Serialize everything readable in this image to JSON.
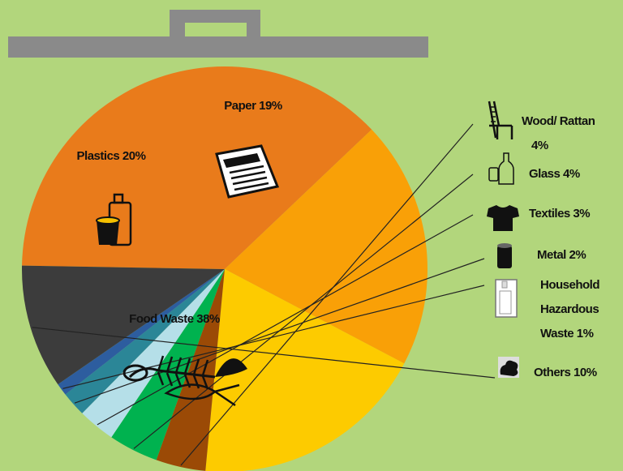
{
  "colors": {
    "background": "#b2d67c",
    "handle": "#8a8a8a"
  },
  "chart_data": {
    "type": "pie",
    "title": "",
    "slices": [
      {
        "key": "food",
        "label": "Food Waste 38%",
        "value": 38,
        "color": "#e97b1b",
        "icon": "fish-bone-icon"
      },
      {
        "key": "plastics",
        "label": "Plastics 20%",
        "value": 20,
        "color": "#f9a007",
        "icon": "plastic-bottle-cup-icon"
      },
      {
        "key": "paper",
        "label": "Paper 19%",
        "value": 19,
        "color": "#fdcb00",
        "icon": "newspaper-icon"
      },
      {
        "key": "wood",
        "label_lines": [
          "Wood/ Rattan",
          "4%"
        ],
        "value": 4,
        "color": "#9b4a06",
        "icon": "chair-icon"
      },
      {
        "key": "glass",
        "label_lines": [
          "Glass 4%"
        ],
        "value": 4,
        "color": "#00b24f",
        "icon": "glass-bottle-icon"
      },
      {
        "key": "textiles",
        "label_lines": [
          "Textiles 3%"
        ],
        "value": 3,
        "color": "#b5dfe8",
        "icon": "tshirt-icon"
      },
      {
        "key": "metal",
        "label_lines": [
          "Metal 2%"
        ],
        "value": 2,
        "color": "#2b8697",
        "icon": "metal-can-icon"
      },
      {
        "key": "hazardous",
        "label_lines": [
          "Household",
          "Hazardous",
          "Waste 1%"
        ],
        "value": 1,
        "color": "#2d5d9f",
        "icon": "hazardous-container-icon"
      },
      {
        "key": "others",
        "label_lines": [
          "Others 10%"
        ],
        "value": 10,
        "color": "#3c3c3c",
        "icon": "rubbish-pile-icon"
      }
    ]
  }
}
